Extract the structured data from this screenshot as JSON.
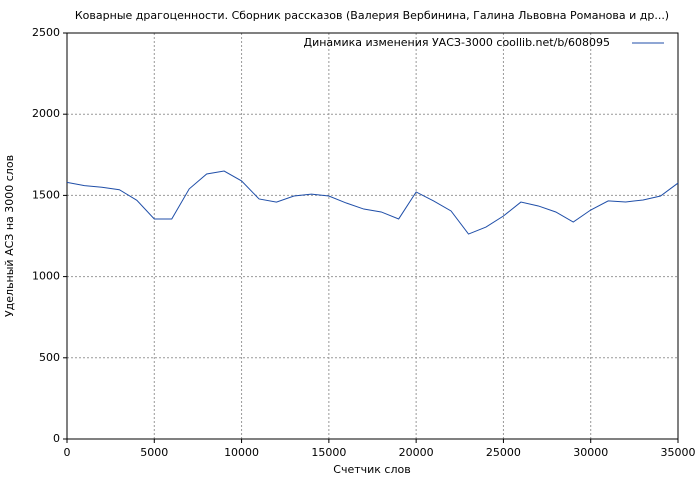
{
  "chart_data": {
    "type": "line",
    "title": "Коварные драгоценности. Сборник рассказов (Валерия Вербинина, Галина Львовна Романова и др...)",
    "x_label": "Счетчик слов",
    "y_label": "Удельный АСЗ на 3000 слов",
    "x": [
      0,
      1000,
      2000,
      3000,
      4000,
      5000,
      6000,
      7000,
      8000,
      9000,
      10000,
      11000,
      12000,
      13000,
      14000,
      15000,
      16000,
      17000,
      18000,
      19000,
      20000,
      21000,
      22000,
      23000,
      24000,
      25000,
      26000,
      27000,
      28000,
      29000,
      30000,
      31000,
      32000,
      33000,
      34000,
      35000
    ],
    "series": [
      {
        "name": "Динамика изменения УАСЗ-3000 coollib.net/b/608095",
        "color": "#1f4ea8",
        "values": [
          1580,
          1560,
          1550,
          1535,
          1470,
          1355,
          1355,
          1540,
          1632,
          1650,
          1589,
          1478,
          1459,
          1496,
          1508,
          1496,
          1453,
          1416,
          1398,
          1355,
          1521,
          1466,
          1404,
          1262,
          1305,
          1373,
          1459,
          1435,
          1398,
          1336,
          1410,
          1466,
          1459,
          1472,
          1496,
          1576
        ]
      }
    ],
    "xlim": [
      0,
      35000
    ],
    "xticks": [
      0,
      5000,
      10000,
      15000,
      20000,
      25000,
      30000,
      35000
    ],
    "ylim": [
      0,
      2500
    ],
    "yticks": [
      0,
      500,
      1000,
      1500,
      2000,
      2500
    ],
    "grid": true,
    "legend": "upper right"
  }
}
